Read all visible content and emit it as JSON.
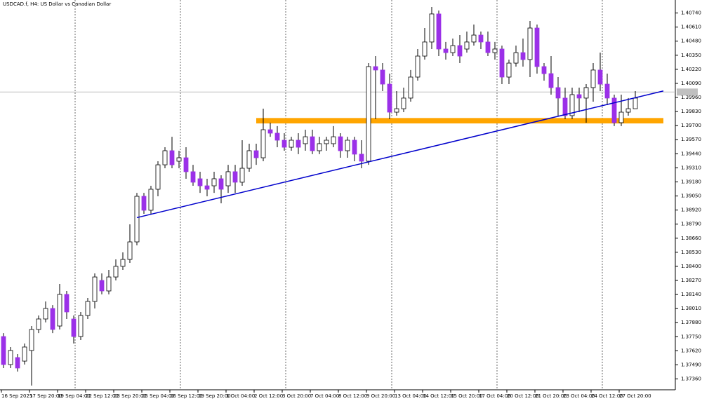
{
  "chart_data": {
    "type": "candlestick",
    "title": "USDCAD.f, H4: US Dollar vs Canadian Dollar",
    "up_color": "#ffffff",
    "down_color": "#9b30e8",
    "wick_color": "#000000",
    "ylim": [
      1.3726,
      1.4086
    ],
    "yticks": [
      {
        "value": 1.3736,
        "label": "1.37360"
      },
      {
        "value": 1.3749,
        "label": "1.37490"
      },
      {
        "value": 1.3762,
        "label": "1.37620"
      },
      {
        "value": 1.3775,
        "label": "1.37750"
      },
      {
        "value": 1.3788,
        "label": "1.37880"
      },
      {
        "value": 1.3801,
        "label": "1.38010"
      },
      {
        "value": 1.3814,
        "label": "1.38140"
      },
      {
        "value": 1.3827,
        "label": "1.38270"
      },
      {
        "value": 1.384,
        "label": "1.38400"
      },
      {
        "value": 1.3853,
        "label": "1.38530"
      },
      {
        "value": 1.3866,
        "label": "1.38660"
      },
      {
        "value": 1.3879,
        "label": "1.38790"
      },
      {
        "value": 1.3892,
        "label": "1.38920"
      },
      {
        "value": 1.3905,
        "label": "1.39050"
      },
      {
        "value": 1.3918,
        "label": "1.39180"
      },
      {
        "value": 1.3931,
        "label": "1.39310"
      },
      {
        "value": 1.3944,
        "label": "1.39440"
      },
      {
        "value": 1.3957,
        "label": "1.39570"
      },
      {
        "value": 1.397,
        "label": "1.39700"
      },
      {
        "value": 1.3983,
        "label": "1.39830"
      },
      {
        "value": 1.3996,
        "label": "1.39960"
      },
      {
        "value": 1.4009,
        "label": "1.40090"
      },
      {
        "value": 1.4022,
        "label": "1.40220"
      },
      {
        "value": 1.4035,
        "label": "1.40350"
      },
      {
        "value": 1.4048,
        "label": "1.40480"
      },
      {
        "value": 1.4061,
        "label": "1.40610"
      },
      {
        "value": 1.4074,
        "label": "1.40740"
      }
    ],
    "x_labels": [
      "16 Sep 2025",
      "17 Sep 20:00",
      "19 Sep 04:00",
      "22 Sep 12:00",
      "23 Sep 20:00",
      "25 Sep 04:00",
      "26 Sep 12:00",
      "29 Sep 20:00",
      "1 Oct 04:00",
      "2 Oct 12:00",
      "3 Oct 20:00",
      "7 Oct 04:00",
      "8 Oct 12:00",
      "9 Oct 20:00",
      "13 Oct 04:00",
      "14 Oct 12:00",
      "15 Oct 20:00",
      "17 Oct 04:00",
      "20 Oct 12:00",
      "21 Oct 20:00",
      "23 Oct 04:00",
      "24 Oct 12:00",
      "27 Oct 20:00"
    ],
    "current_price": {
      "value": 1.4001,
      "color": "#c0c0c0"
    },
    "trendline": {
      "color": "#0000cc",
      "start_index": 19,
      "start_price": 1.3885,
      "end_index": 94,
      "end_price": 1.4002
    },
    "zone": {
      "color": "#ffa500",
      "start_index": 36,
      "end_index": 94,
      "low": 1.3972,
      "high": 1.3977
    },
    "ohlc": [
      [
        1.37752,
        1.37784,
        1.37461,
        1.37493
      ],
      [
        1.37493,
        1.37655,
        1.37461,
        1.37623
      ],
      [
        1.37558,
        1.3759,
        1.37428,
        1.37461
      ],
      [
        1.37525,
        1.37687,
        1.37493,
        1.37655
      ],
      [
        1.37623,
        1.37849,
        1.37299,
        1.37817
      ],
      [
        1.37817,
        1.37946,
        1.37784,
        1.37914
      ],
      [
        1.37914,
        1.38076,
        1.37882,
        1.38011
      ],
      [
        1.38011,
        1.38043,
        1.37784,
        1.37817
      ],
      [
        1.37849,
        1.38238,
        1.37817,
        1.38141
      ],
      [
        1.38141,
        1.38173,
        1.37914,
        1.37979
      ],
      [
        1.37914,
        1.37946,
        1.37687,
        1.37752
      ],
      [
        1.37752,
        1.37979,
        1.3772,
        1.37946
      ],
      [
        1.37946,
        1.38108,
        1.37914,
        1.38076
      ],
      [
        1.38076,
        1.38335,
        1.38011,
        1.38302
      ],
      [
        1.3827,
        1.38335,
        1.38141,
        1.38173
      ],
      [
        1.38173,
        1.38367,
        1.38141,
        1.38302
      ],
      [
        1.38302,
        1.38464,
        1.3827,
        1.384
      ],
      [
        1.384,
        1.38529,
        1.38367,
        1.38464
      ],
      [
        1.38464,
        1.38788,
        1.38432,
        1.38626
      ],
      [
        1.38626,
        1.39079,
        1.38594,
        1.39047
      ],
      [
        1.39047,
        1.39079,
        1.38885,
        1.38918
      ],
      [
        1.38918,
        1.39144,
        1.38885,
        1.39112
      ],
      [
        1.39112,
        1.39371,
        1.39047,
        1.39338
      ],
      [
        1.39338,
        1.395,
        1.39306,
        1.39468
      ],
      [
        1.39468,
        1.39597,
        1.39306,
        1.39338
      ],
      [
        1.39371,
        1.39468,
        1.39306,
        1.39403
      ],
      [
        1.39403,
        1.395,
        1.39209,
        1.39274
      ],
      [
        1.39274,
        1.39338,
        1.39144,
        1.39177
      ],
      [
        1.39209,
        1.39274,
        1.39079,
        1.39144
      ],
      [
        1.39144,
        1.39209,
        1.39047,
        1.39112
      ],
      [
        1.39144,
        1.39274,
        1.39079,
        1.39209
      ],
      [
        1.39209,
        1.39241,
        1.38982,
        1.39112
      ],
      [
        1.39144,
        1.39338,
        1.39079,
        1.39274
      ],
      [
        1.39274,
        1.39338,
        1.39079,
        1.39177
      ],
      [
        1.39177,
        1.39565,
        1.39144,
        1.39306
      ],
      [
        1.39306,
        1.39533,
        1.39274,
        1.39468
      ],
      [
        1.39468,
        1.39533,
        1.39338,
        1.39403
      ],
      [
        1.39403,
        1.39856,
        1.39371,
        1.39662
      ],
      [
        1.39662,
        1.39727,
        1.39597,
        1.3963
      ],
      [
        1.3963,
        1.39695,
        1.395,
        1.39565
      ],
      [
        1.39565,
        1.3963,
        1.39468,
        1.395
      ],
      [
        1.395,
        1.39597,
        1.39468,
        1.39565
      ],
      [
        1.39565,
        1.3963,
        1.39436,
        1.395
      ],
      [
        1.39533,
        1.39662,
        1.39468,
        1.39597
      ],
      [
        1.39597,
        1.39662,
        1.39436,
        1.39468
      ],
      [
        1.39468,
        1.39597,
        1.39436,
        1.39533
      ],
      [
        1.39533,
        1.39597,
        1.39468,
        1.39565
      ],
      [
        1.39533,
        1.39695,
        1.395,
        1.39597
      ],
      [
        1.39597,
        1.3963,
        1.39403,
        1.39468
      ],
      [
        1.39468,
        1.39597,
        1.39403,
        1.39565
      ],
      [
        1.39565,
        1.39597,
        1.39371,
        1.39436
      ],
      [
        1.39436,
        1.39565,
        1.39306,
        1.39371
      ],
      [
        1.39371,
        1.40277,
        1.39338,
        1.40245
      ],
      [
        1.40245,
        1.40342,
        1.39759,
        1.40213
      ],
      [
        1.40213,
        1.40277,
        1.40018,
        1.40083
      ],
      [
        1.40083,
        1.4018,
        1.39759,
        1.39824
      ],
      [
        1.39824,
        1.40018,
        1.39792,
        1.39856
      ],
      [
        1.39856,
        1.40051,
        1.39824,
        1.39954
      ],
      [
        1.39954,
        1.40213,
        1.39921,
        1.40148
      ],
      [
        1.40148,
        1.40407,
        1.40115,
        1.40342
      ],
      [
        1.40342,
        1.40601,
        1.4031,
        1.40472
      ],
      [
        1.40472,
        1.40795,
        1.40407,
        1.40731
      ],
      [
        1.40731,
        1.40763,
        1.40342,
        1.40407
      ],
      [
        1.40407,
        1.40472,
        1.4031,
        1.40374
      ],
      [
        1.40374,
        1.40504,
        1.40342,
        1.40439
      ],
      [
        1.40439,
        1.40536,
        1.40277,
        1.40342
      ],
      [
        1.40407,
        1.40569,
        1.40374,
        1.40472
      ],
      [
        1.40472,
        1.40633,
        1.40439,
        1.40536
      ],
      [
        1.40536,
        1.40569,
        1.40407,
        1.40472
      ],
      [
        1.40472,
        1.40569,
        1.40342,
        1.40374
      ],
      [
        1.40374,
        1.40472,
        1.4031,
        1.40407
      ],
      [
        1.40407,
        1.40439,
        1.40083,
        1.40148
      ],
      [
        1.40148,
        1.4031,
        1.40083,
        1.40277
      ],
      [
        1.40277,
        1.40439,
        1.40245,
        1.40374
      ],
      [
        1.40374,
        1.40504,
        1.40245,
        1.4031
      ],
      [
        1.4031,
        1.40666,
        1.40148,
        1.40601
      ],
      [
        1.40601,
        1.40633,
        1.4018,
        1.40245
      ],
      [
        1.40245,
        1.40277,
        1.40115,
        1.4018
      ],
      [
        1.4018,
        1.40342,
        1.39986,
        1.40051
      ],
      [
        1.40051,
        1.40148,
        1.39792,
        1.39954
      ],
      [
        1.39954,
        1.40051,
        1.39759,
        1.39792
      ],
      [
        1.39792,
        1.40051,
        1.39759,
        1.39986
      ],
      [
        1.39986,
        1.40051,
        1.39824,
        1.39954
      ],
      [
        1.39954,
        1.40083,
        1.39727,
        1.40051
      ],
      [
        1.40051,
        1.40277,
        1.39921,
        1.40213
      ],
      [
        1.40213,
        1.40374,
        1.40018,
        1.40083
      ],
      [
        1.40083,
        1.4018,
        1.39889,
        1.39954
      ],
      [
        1.39954,
        1.39986,
        1.39695,
        1.39727
      ],
      [
        1.39727,
        1.39986,
        1.39695,
        1.39824
      ],
      [
        1.39824,
        1.39954,
        1.39792,
        1.39856
      ],
      [
        1.39856,
        1.40018,
        1.39856,
        1.39954
      ]
    ]
  }
}
